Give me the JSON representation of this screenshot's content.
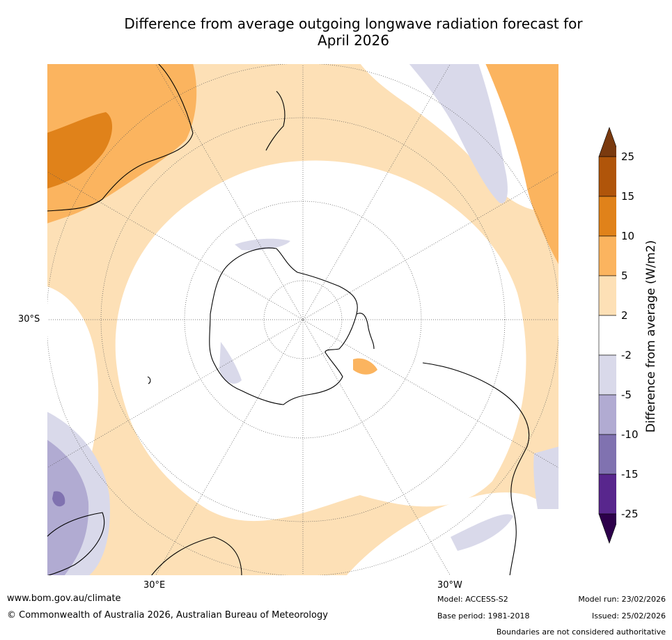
{
  "title_line1": "Difference from average outgoing longwave radiation forecast for",
  "title_line2": "April 2026",
  "map": {
    "lat_label": "30°S",
    "lon_labels": [
      "30°E",
      "30°W"
    ]
  },
  "colorbar": {
    "title": "Difference from average (W/m2)",
    "ticks": [
      "25",
      "15",
      "10",
      "5",
      "2",
      "-2",
      "-5",
      "-10",
      "-15",
      "-25"
    ],
    "bins": [
      {
        "range": "above 25",
        "color": "#7a3a0f"
      },
      {
        "range": "15 to 25",
        "color": "#b0550a"
      },
      {
        "range": "10 to 15",
        "color": "#e0821a"
      },
      {
        "range": "5 to 10",
        "color": "#fbb45f"
      },
      {
        "range": "2 to 5",
        "color": "#fde0b6"
      },
      {
        "range": "-2 to 2",
        "color": "#ffffff"
      },
      {
        "range": "-5 to -2",
        "color": "#d9d9ea"
      },
      {
        "range": "-10 to -5",
        "color": "#b1abd2"
      },
      {
        "range": "-15 to -10",
        "color": "#8072b0"
      },
      {
        "range": "-25 to -15",
        "color": "#58268d"
      },
      {
        "range": "below -25",
        "color": "#2d004b"
      }
    ]
  },
  "footer": {
    "website": "www.bom.gov.au/climate",
    "copyright": "© Commonwealth of Australia 2026, Australian Bureau of Meteorology",
    "model": "Model: ACCESS-S2",
    "base_period": "Base period: 1981-2018",
    "model_run": "Model run: 23/02/2026",
    "issued": "Issued: 25/02/2026",
    "disclaimer": "Boundaries are not considered authoritative"
  }
}
